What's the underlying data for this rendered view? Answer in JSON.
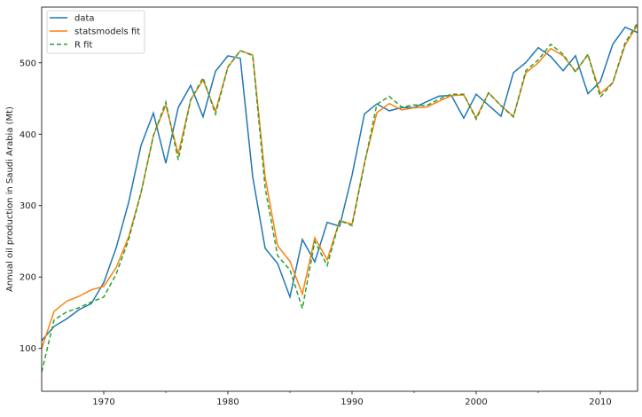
{
  "chart_data": {
    "type": "line",
    "title": "",
    "xlabel": "",
    "ylabel": "Annual oil production in Saudi Arabia (Mt)",
    "xlim": [
      1965,
      2013
    ],
    "ylim": [
      40,
      578
    ],
    "xticks": [
      1970,
      1980,
      1990,
      2000,
      2010
    ],
    "xminor_ticks": [
      1975,
      1985,
      1995,
      2005
    ],
    "yticks": [
      100,
      200,
      300,
      400,
      500
    ],
    "grid": false,
    "legend_placement": "top-left",
    "x": [
      1965,
      1966,
      1967,
      1968,
      1969,
      1970,
      1971,
      1972,
      1973,
      1974,
      1975,
      1976,
      1977,
      1978,
      1979,
      1980,
      1981,
      1982,
      1983,
      1984,
      1985,
      1986,
      1987,
      1988,
      1989,
      1990,
      1991,
      1992,
      1993,
      1994,
      1995,
      1996,
      1997,
      1998,
      1999,
      2000,
      2001,
      2002,
      2003,
      2004,
      2005,
      2006,
      2007,
      2008,
      2009,
      2010,
      2011,
      2012,
      2013
    ],
    "series": [
      {
        "name": "data",
        "color": "#1f77b4",
        "style": "solid",
        "values": [
          111.0,
          130.8,
          141.3,
          154.2,
          162.7,
          192.2,
          240.8,
          304.2,
          384.0,
          429.7,
          359.3,
          437.3,
          468.4,
          424.4,
          488.0,
          509.8,
          506.3,
          340.2,
          240.3,
          219.0,
          172.1,
          252.6,
          221.1,
          276.5,
          271.1,
          342.6,
          428.4,
          442.4,
          432.8,
          437.2,
          437.2,
          445.4,
          453.2,
          454.4,
          422.4,
          456.0,
          440.4,
          425.2,
          486.2,
          500.4,
          521.3,
          508.9,
          488.9,
          509.9,
          456.7,
          473.8,
          526.0,
          549.8,
          542.3
        ]
      },
      {
        "name": "statsmodels fit",
        "color": "#ff7f0e",
        "style": "solid",
        "values": [
          100,
          152,
          166,
          173,
          182,
          187,
          213,
          256,
          318,
          398,
          441,
          372,
          448,
          476,
          432,
          494,
          517,
          511,
          340,
          244,
          222,
          176,
          255,
          224,
          279,
          274,
          360,
          430,
          443,
          434,
          437,
          438,
          446,
          454,
          455,
          423,
          458,
          440,
          425,
          486,
          500,
          520,
          510,
          488,
          511,
          457,
          472,
          525,
          553
        ]
      },
      {
        "name": "R fit",
        "color": "#2ca02c",
        "style": "dashed",
        "values": [
          67,
          140,
          151,
          157,
          165,
          172,
          204,
          252,
          318,
          398,
          445,
          364,
          448,
          479,
          428,
          494,
          517,
          510,
          325,
          230,
          210,
          156,
          250,
          216,
          279,
          272,
          358,
          442,
          453,
          438,
          441,
          440,
          449,
          456,
          456,
          421,
          458,
          440,
          424,
          489,
          504,
          526,
          512,
          487,
          512,
          452,
          472,
          528,
          556
        ]
      }
    ]
  }
}
